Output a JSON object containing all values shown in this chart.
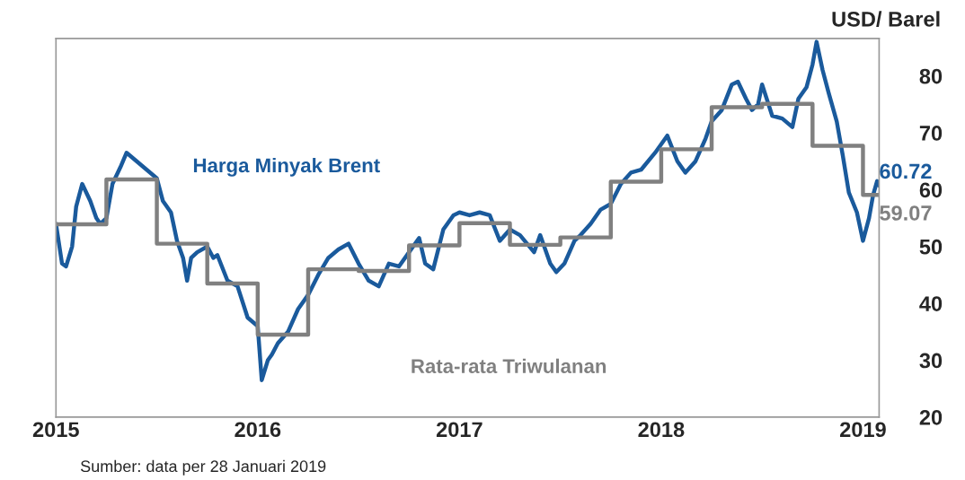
{
  "chart_data": {
    "type": "line",
    "ylabel": "USD/ Barel",
    "annotations": [
      "Sumber: data per 28 Januari 2019"
    ],
    "xlim": [
      2015,
      2019.08
    ],
    "xticks": [
      {
        "value": 2015,
        "label": "2015"
      },
      {
        "value": 2016,
        "label": "2016"
      },
      {
        "value": 2017,
        "label": "2017"
      },
      {
        "value": 2018,
        "label": "2018"
      },
      {
        "value": 2019,
        "label": "2019"
      }
    ],
    "ylim": [
      20,
      86.6
    ],
    "yticks": [
      20,
      30,
      40,
      50,
      60,
      70,
      80
    ],
    "grid": false,
    "legend": false,
    "series": [
      {
        "name": "Harga Minyak Brent",
        "color": "#1a5a9c",
        "x": [
          2015.0,
          2015.03,
          2015.05,
          2015.08,
          2015.1,
          2015.13,
          2015.17,
          2015.2,
          2015.22,
          2015.25,
          2015.28,
          2015.32,
          2015.35,
          2015.4,
          2015.45,
          2015.5,
          2015.53,
          2015.57,
          2015.6,
          2015.63,
          2015.65,
          2015.67,
          2015.7,
          2015.75,
          2015.78,
          2015.8,
          2015.85,
          2015.9,
          2015.95,
          2016.0,
          2016.02,
          2016.05,
          2016.07,
          2016.1,
          2016.15,
          2016.2,
          2016.25,
          2016.3,
          2016.35,
          2016.4,
          2016.45,
          2016.5,
          2016.55,
          2016.6,
          2016.65,
          2016.7,
          2016.75,
          2016.8,
          2016.83,
          2016.87,
          2016.92,
          2016.97,
          2017.0,
          2017.05,
          2017.1,
          2017.15,
          2017.2,
          2017.25,
          2017.3,
          2017.37,
          2017.4,
          2017.45,
          2017.48,
          2017.52,
          2017.57,
          2017.6,
          2017.65,
          2017.7,
          2017.75,
          2017.8,
          2017.85,
          2017.9,
          2017.97,
          2018.03,
          2018.08,
          2018.12,
          2018.17,
          2018.22,
          2018.25,
          2018.3,
          2018.35,
          2018.38,
          2018.42,
          2018.45,
          2018.48,
          2018.5,
          2018.55,
          2018.6,
          2018.65,
          2018.68,
          2018.72,
          2018.75,
          2018.77,
          2018.8,
          2018.83,
          2018.87,
          2018.9,
          2018.93,
          2018.97,
          2019.0,
          2019.03,
          2019.05,
          2019.07,
          2019.08
        ],
        "values": [
          54,
          47,
          46.5,
          50,
          57,
          61,
          58,
          55,
          54,
          55,
          61,
          64,
          66.5,
          65,
          63.5,
          62,
          58,
          56,
          51,
          48,
          44,
          48,
          49,
          50,
          48,
          48.5,
          44,
          43,
          37.5,
          36,
          26.5,
          30,
          31,
          33,
          35,
          39,
          41.5,
          45,
          48,
          49.5,
          50.5,
          47,
          44,
          43,
          47,
          46.5,
          49,
          51.5,
          47,
          46,
          53,
          55.5,
          56,
          55.5,
          56,
          55.5,
          51,
          53,
          52,
          49,
          52,
          47,
          45.5,
          47,
          51,
          52,
          54,
          56.5,
          57.5,
          61,
          63,
          63.5,
          66.5,
          69.5,
          65,
          63,
          65,
          69,
          72,
          74,
          78.5,
          79,
          76,
          74,
          75,
          78.5,
          73,
          72.5,
          71,
          76,
          78,
          82,
          86,
          81,
          77,
          72,
          66,
          59.5,
          56,
          51,
          55,
          59,
          61.5,
          60.72
        ],
        "value_labels": [
          null,
          null,
          null,
          null,
          null,
          null,
          null,
          null,
          null,
          null,
          null,
          null,
          null,
          null,
          null,
          null,
          null,
          null,
          null,
          null,
          null,
          null,
          null,
          null,
          null,
          null,
          null,
          null,
          null,
          null,
          null,
          null,
          null,
          null,
          null,
          null,
          null,
          null,
          null,
          null,
          null,
          null,
          null,
          null,
          null,
          null,
          null,
          null,
          null,
          null,
          null,
          null,
          null,
          null,
          null,
          null,
          null,
          null,
          null,
          null,
          null,
          null,
          null,
          null,
          null,
          null,
          null,
          null,
          null,
          null,
          null,
          null,
          null,
          null,
          null,
          null,
          null,
          null,
          null,
          null,
          null,
          null,
          null,
          null,
          null,
          null,
          null,
          null,
          null,
          null,
          null,
          null,
          null,
          null,
          null,
          null,
          null,
          null,
          null,
          null,
          null,
          null,
          null,
          "60.72"
        ]
      },
      {
        "name": "Rata-rata Triwulanan",
        "type": "step",
        "color": "#808080",
        "x": [
          2015.0,
          2015.25,
          2015.5,
          2015.75,
          2016.0,
          2016.25,
          2016.5,
          2016.75,
          2017.0,
          2017.25,
          2017.5,
          2017.75,
          2018.0,
          2018.25,
          2018.5,
          2018.75,
          2019.0,
          2019.08
        ],
        "values": [
          53.9,
          61.8,
          50.5,
          43.5,
          34.5,
          46.0,
          45.7,
          50.2,
          54.1,
          50.3,
          51.6,
          61.4,
          67.1,
          74.5,
          75.1,
          67.7,
          59.07,
          59.07
        ],
        "value_labels": [
          null,
          null,
          null,
          null,
          null,
          null,
          null,
          null,
          null,
          null,
          null,
          null,
          null,
          null,
          null,
          null,
          null,
          "59.07"
        ]
      }
    ]
  }
}
